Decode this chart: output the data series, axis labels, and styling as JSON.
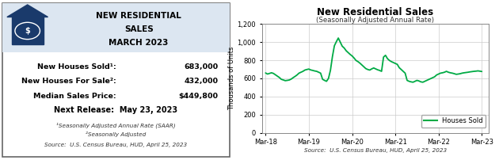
{
  "left_bg_color": "#dce6f1",
  "left_header_text": [
    "NEW RESIDENTIAL",
    "SALES",
    "MARCH 2023"
  ],
  "stats": [
    {
      "label": "New Houses Sold¹:",
      "value": "683,000"
    },
    {
      "label": "New Houses For Sale²:",
      "value": "432,000"
    },
    {
      "label": "Median Sales Price:",
      "value": "$449,800"
    }
  ],
  "next_release": "Next Release:  May 23, 2023",
  "footnotes": [
    "¹Seasonally Adjusted Annual Rate (SAAR)",
    "²Seasonally Adjusted",
    "Source:  U.S. Census Bureau, HUD, April 25, 2023"
  ],
  "chart_title": "New Residential Sales",
  "chart_subtitle": "(Seasonally Adjusted Annual Rate)",
  "chart_ylabel": "Thousands of Units",
  "chart_source": "Source:  U.S. Census Bureau, HUD, April 25, 2023",
  "line_color": "#00aa44",
  "legend_label": "Houses Sold",
  "x_tick_labels": [
    "Mar-18",
    "Mar-19",
    "Mar-20",
    "Mar-21",
    "Mar-22",
    "Mar-23"
  ],
  "ylim": [
    0,
    1200
  ],
  "yticks": [
    0,
    200,
    400,
    600,
    800,
    1000,
    1200
  ],
  "houses_sold_data": [
    660,
    648,
    655,
    662,
    655,
    640,
    625,
    610,
    590,
    583,
    575,
    578,
    582,
    592,
    608,
    622,
    638,
    658,
    668,
    678,
    692,
    698,
    703,
    693,
    688,
    682,
    678,
    668,
    658,
    590,
    578,
    568,
    600,
    690,
    840,
    960,
    1005,
    1045,
    1000,
    955,
    935,
    905,
    885,
    865,
    848,
    825,
    798,
    785,
    768,
    748,
    728,
    708,
    698,
    692,
    705,
    715,
    705,
    695,
    688,
    678,
    835,
    855,
    818,
    798,
    785,
    775,
    765,
    755,
    718,
    698,
    678,
    658,
    578,
    568,
    562,
    558,
    568,
    578,
    572,
    562,
    558,
    568,
    578,
    588,
    598,
    608,
    618,
    638,
    648,
    658,
    662,
    668,
    678,
    668,
    662,
    658,
    652,
    645,
    648,
    652,
    658,
    662,
    665,
    668,
    672,
    675,
    678,
    680,
    683,
    680,
    676
  ]
}
